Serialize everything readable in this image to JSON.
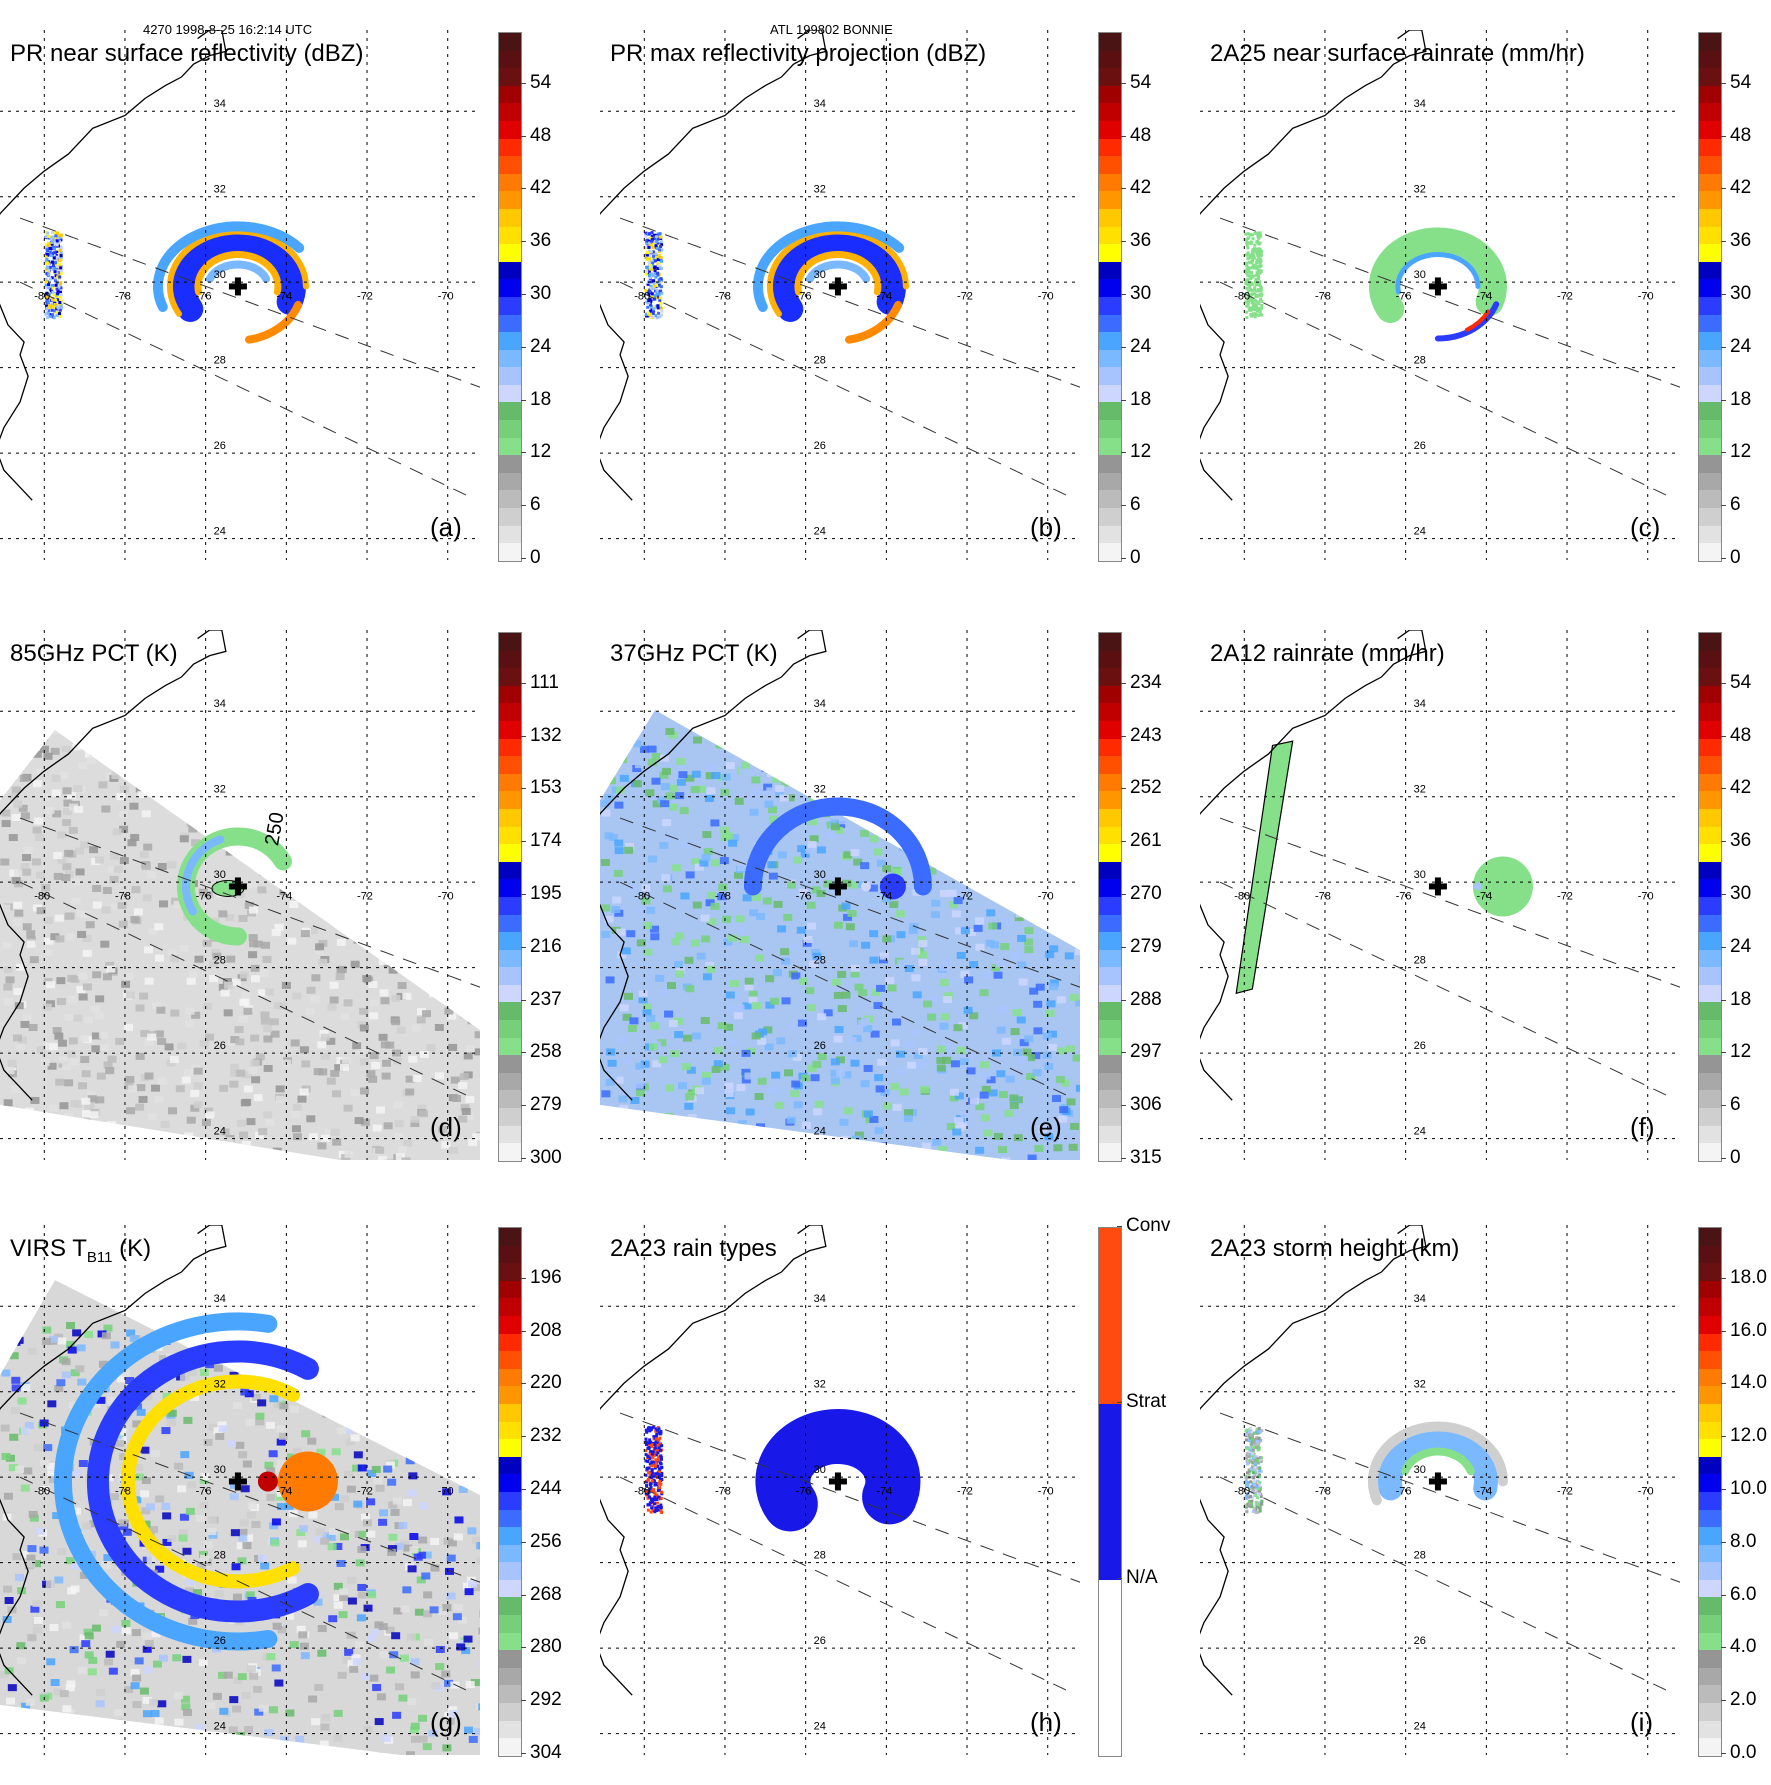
{
  "header": {
    "orbit_time": "4270 1998-8-25 16:2:14 UTC",
    "storm": "ATL 199802 BONNIE"
  },
  "grid": {
    "lat_labels": [
      "34",
      "32",
      "30",
      "28",
      "26",
      "24"
    ],
    "lon_labels": [
      "-80",
      "-78",
      "-76",
      "-74",
      "-72",
      "-70"
    ]
  },
  "chart_data": [
    {
      "type": "heatmap",
      "panel": "a",
      "title": "PR near surface reflectivity (dBZ)",
      "label": "(a)",
      "colorbar_ticks": [
        "54",
        "48",
        "42",
        "36",
        "30",
        "24",
        "18",
        "12",
        "6",
        "0"
      ],
      "colorbar_range": [
        0,
        60
      ],
      "storm_center": {
        "lon": -75.2,
        "lat": 29.9
      },
      "xlabel": "",
      "ylabel": ""
    },
    {
      "type": "heatmap",
      "panel": "b",
      "title": "PR max reflectivity projection (dBZ)",
      "label": "(b)",
      "colorbar_ticks": [
        "54",
        "48",
        "42",
        "36",
        "30",
        "24",
        "18",
        "12",
        "6",
        "0"
      ],
      "colorbar_range": [
        0,
        60
      ],
      "storm_center": {
        "lon": -75.2,
        "lat": 29.9
      }
    },
    {
      "type": "heatmap",
      "panel": "c",
      "title": "2A25 near surface rainrate (mm/hr)",
      "label": "(c)",
      "colorbar_ticks": [
        "54",
        "48",
        "42",
        "36",
        "30",
        "24",
        "18",
        "12",
        "6",
        "0"
      ],
      "colorbar_range": [
        0,
        60
      ],
      "storm_center": {
        "lon": -75.2,
        "lat": 29.9
      }
    },
    {
      "type": "heatmap",
      "panel": "d",
      "title": "85GHz PCT (K)",
      "label": "(d)",
      "contour_label": "250",
      "colorbar_ticks": [
        "111",
        "132",
        "153",
        "174",
        "195",
        "216",
        "237",
        "258",
        "279",
        "300"
      ],
      "colorbar_range": [
        90,
        300
      ],
      "storm_center": {
        "lon": -75.2,
        "lat": 29.9
      }
    },
    {
      "type": "heatmap",
      "panel": "e",
      "title": "37GHz PCT (K)",
      "label": "(e)",
      "colorbar_ticks": [
        "234",
        "243",
        "252",
        "261",
        "270",
        "279",
        "288",
        "297",
        "306",
        "315"
      ],
      "colorbar_range": [
        225,
        315
      ],
      "storm_center": {
        "lon": -75.2,
        "lat": 29.9
      }
    },
    {
      "type": "heatmap",
      "panel": "f",
      "title": "2A12 rainrate (mm/hr)",
      "label": "(f)",
      "colorbar_ticks": [
        "54",
        "48",
        "42",
        "36",
        "30",
        "24",
        "18",
        "12",
        "6",
        "0"
      ],
      "colorbar_range": [
        0,
        60
      ],
      "storm_center": {
        "lon": -75.2,
        "lat": 29.9
      }
    },
    {
      "type": "heatmap",
      "panel": "g",
      "title_main": "VIRS T",
      "title_sub": "B11",
      "title_unit": " (K)",
      "label": "(g)",
      "colorbar_ticks": [
        "196",
        "208",
        "220",
        "232",
        "244",
        "256",
        "268",
        "280",
        "292",
        "304"
      ],
      "colorbar_range": [
        184,
        304
      ],
      "storm_center": {
        "lon": -75.2,
        "lat": 29.9
      }
    },
    {
      "type": "heatmap",
      "panel": "h",
      "title": "2A23 rain types",
      "label": "(h)",
      "colorbar_categories": [
        "Conv",
        "Strat",
        "N/A"
      ],
      "storm_center": {
        "lon": -75.2,
        "lat": 29.9
      }
    },
    {
      "type": "heatmap",
      "panel": "i",
      "title": "2A23 storm height (km)",
      "label": "(i)",
      "colorbar_ticks": [
        "18.0",
        "16.0",
        "14.0",
        "12.0",
        "10.0",
        "8.0",
        "6.0",
        "4.0",
        "2.0",
        "0.0"
      ],
      "colorbar_range": [
        0,
        20
      ],
      "storm_center": {
        "lon": -75.2,
        "lat": 29.9
      }
    }
  ],
  "colors": {
    "palette": [
      "#f4f4f4",
      "#e2e2e2",
      "#cfcfcf",
      "#bbbbbb",
      "#a8a8a8",
      "#959595",
      "#86e08a",
      "#76d07a",
      "#66bb6a",
      "#cdd6ff",
      "#a8c4ff",
      "#7ab8ff",
      "#4aa5ff",
      "#3c6cff",
      "#2a3cff",
      "#0000ee",
      "#0000c0",
      "#ffff00",
      "#ffe000",
      "#ffc800",
      "#ff9600",
      "#ff7a00",
      "#ff5000",
      "#ff2a00",
      "#e00000",
      "#c00000",
      "#a00000",
      "#6a1010",
      "#5a1010",
      "#4a1414"
    ],
    "conv": "#ff4a10",
    "strat": "#1818e8",
    "na": "#ffffff"
  }
}
